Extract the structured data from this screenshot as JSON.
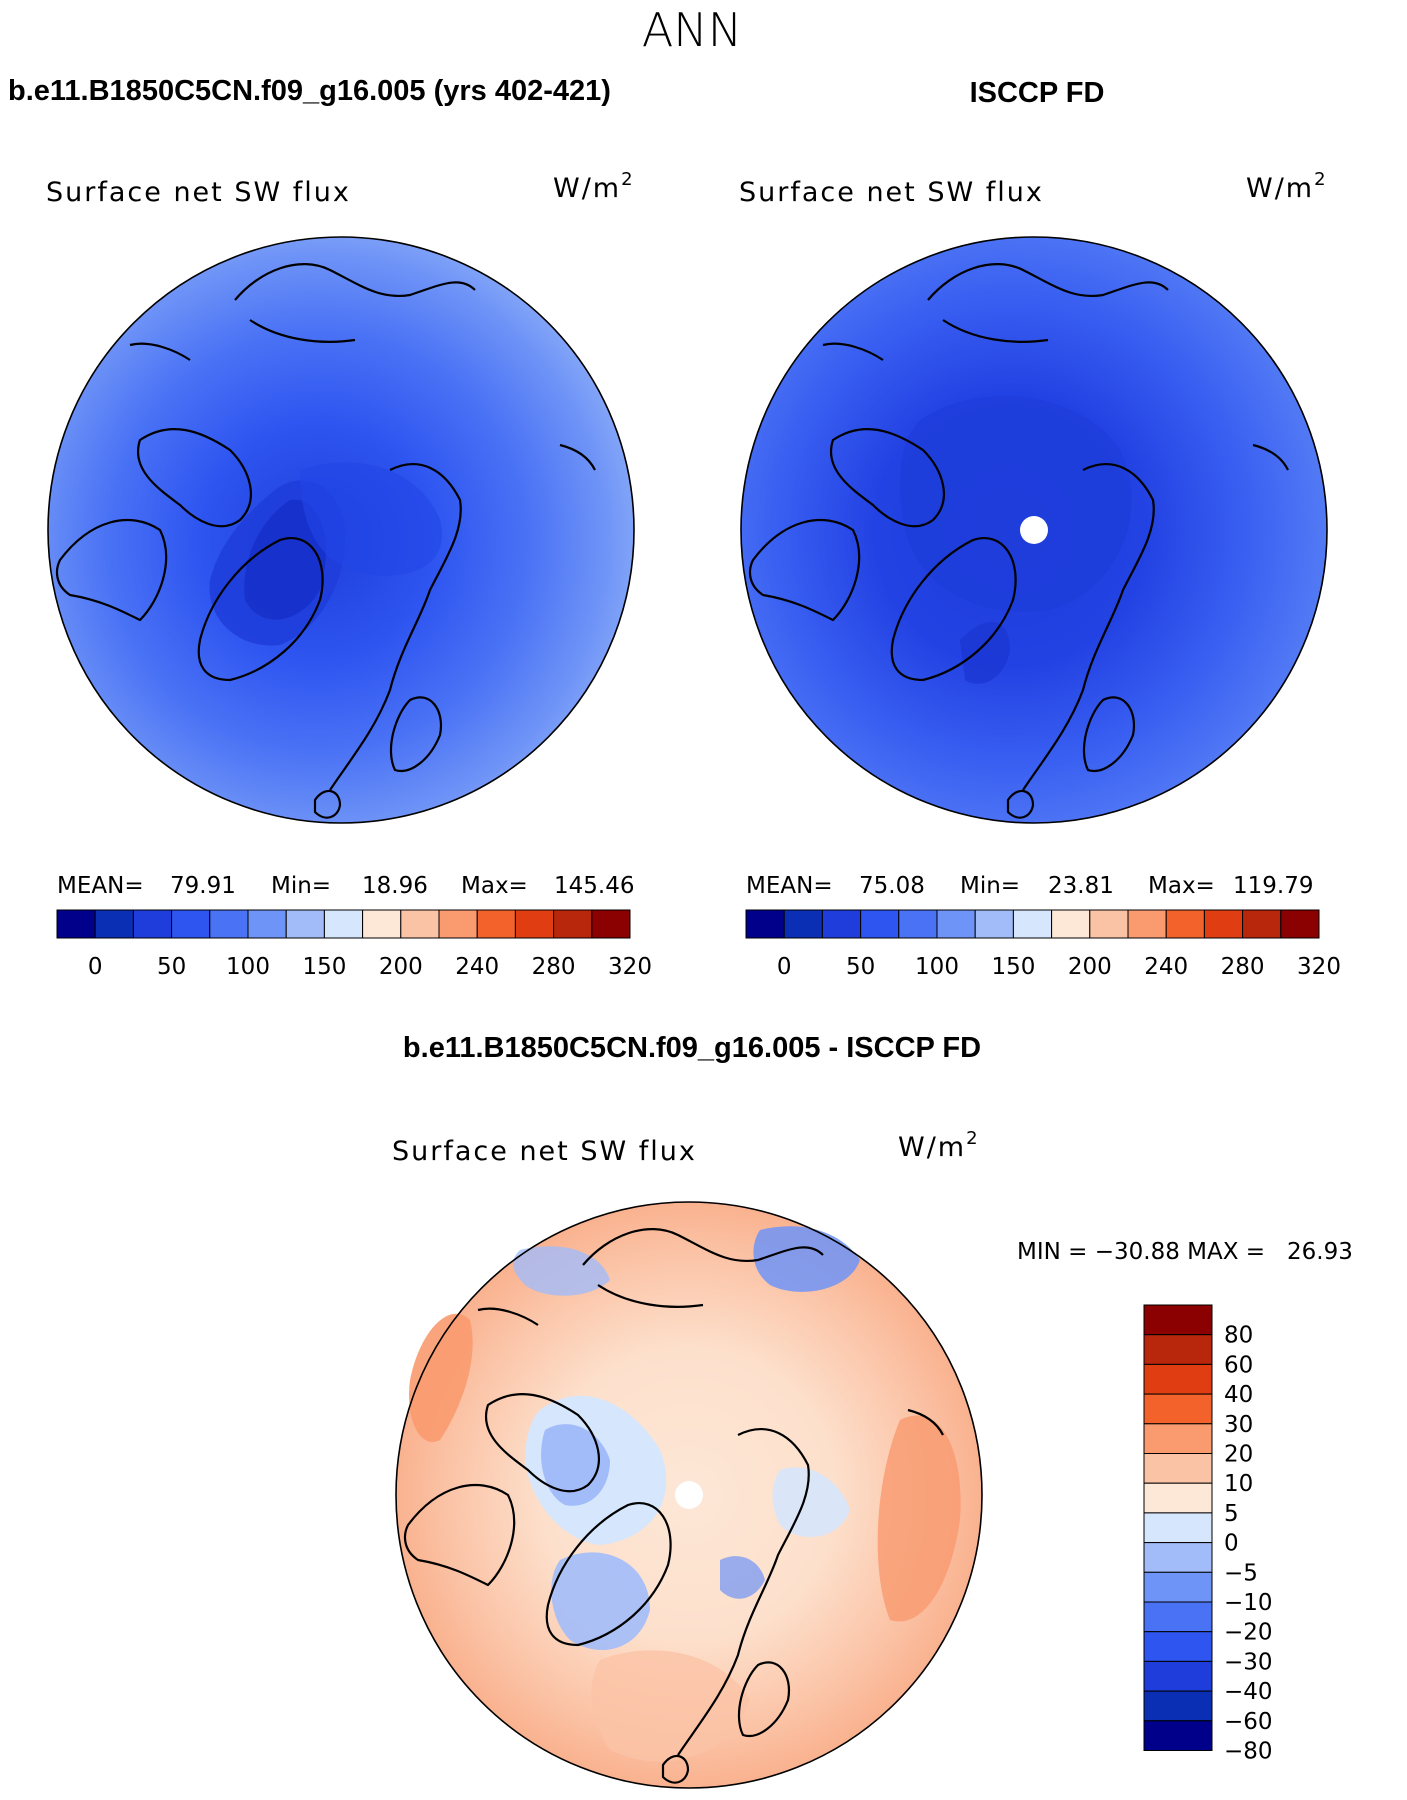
{
  "figure": {
    "season": "ANN",
    "colors": {
      "land_outline": "#000000",
      "pole_hole": "#ffffff"
    }
  },
  "panels": [
    {
      "id": "model",
      "case_title": "b.e11.B1850C5CN.f09_g16.005 (yrs 402-421)",
      "variable": "Surface net SW flux",
      "units_base": "W/m",
      "units_exp": "2",
      "stats": {
        "mean_label": "MEAN=",
        "mean": "79.91",
        "min_label": "Min=",
        "min": "18.96",
        "max_label": "Max=",
        "max": "145.46"
      },
      "colorbar": {
        "colors": [
          "#00008b",
          "#0a2eb4",
          "#1e3ddb",
          "#2e55f0",
          "#4a72f5",
          "#6f94f7",
          "#a2bcf9",
          "#d6e6fc",
          "#fde7d6",
          "#fbc3a6",
          "#f99a6f",
          "#f4622b",
          "#e03e12",
          "#b8260c",
          "#8b0000"
        ],
        "tick_labels": [
          "0",
          "50",
          "100",
          "150",
          "200",
          "240",
          "280",
          "320"
        ]
      },
      "has_pole_hole": false
    },
    {
      "id": "obs",
      "case_title": "ISCCP FD",
      "variable": "Surface net SW flux",
      "units_base": "W/m",
      "units_exp": "2",
      "stats": {
        "mean_label": "MEAN=",
        "mean": "75.08",
        "min_label": "Min=",
        "min": "23.81",
        "max_label": "Max=",
        "max": "119.79"
      },
      "colorbar": {
        "colors": [
          "#00008b",
          "#0a2eb4",
          "#1e3ddb",
          "#2e55f0",
          "#4a72f5",
          "#6f94f7",
          "#a2bcf9",
          "#d6e6fc",
          "#fde7d6",
          "#fbc3a6",
          "#f99a6f",
          "#f4622b",
          "#e03e12",
          "#b8260c",
          "#8b0000"
        ],
        "tick_labels": [
          "0",
          "50",
          "100",
          "150",
          "200",
          "240",
          "280",
          "320"
        ]
      },
      "has_pole_hole": true
    },
    {
      "id": "diff",
      "case_title": "b.e11.B1850C5CN.f09_g16.005 - ISCCP FD",
      "variable": "Surface net SW flux",
      "units_base": "W/m",
      "units_exp": "2",
      "stats": {
        "text": "MIN = −30.88 MAX =   26.93"
      },
      "colorbar": {
        "colors": [
          "#8b0000",
          "#b8260c",
          "#e03e12",
          "#f4622b",
          "#f99a6f",
          "#fbc3a6",
          "#fde7d6",
          "#d6e6fc",
          "#a2bcf9",
          "#6f94f7",
          "#4a72f5",
          "#2e55f0",
          "#1e3ddb",
          "#0a2eb4",
          "#00008b"
        ],
        "tick_labels": [
          "80",
          "60",
          "40",
          "30",
          "20",
          "10",
          "5",
          "0",
          "−5",
          "−10",
          "−20",
          "−30",
          "−40",
          "−60",
          "−80"
        ]
      },
      "has_pole_hole": true
    }
  ]
}
